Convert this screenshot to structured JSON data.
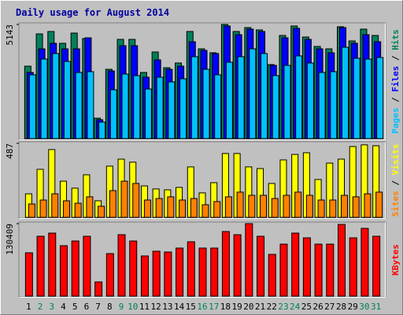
{
  "legend_separator": " / ",
  "chart_data": [
    {
      "type": "bar",
      "title": "Daily usage for August 2014",
      "ylim": [
        0,
        5143
      ],
      "yticks": [
        5143
      ],
      "series": [
        {
          "name": "Hits",
          "color": "#00805c",
          "values": [
            3263,
            4717,
            4824,
            4292,
            4753,
            4505,
            922,
            3121,
            4469,
            4469,
            2979,
            3902,
            3192,
            3405,
            4824,
            4043,
            3866,
            5143,
            4824,
            5001,
            4895,
            3334,
            4646,
            5072,
            4576,
            4150,
            4043,
            5037,
            4398,
            4930,
            4646
          ]
        },
        {
          "name": "Files",
          "color": "#0000ff",
          "values": [
            2979,
            4043,
            4292,
            4043,
            4043,
            4540,
            851,
            3050,
            4185,
            4185,
            2766,
            3547,
            3121,
            3263,
            4363,
            3972,
            3831,
            5072,
            4682,
            4930,
            4824,
            3298,
            4540,
            4966,
            4469,
            4043,
            3866,
            5001,
            4292,
            4682,
            4363
          ]
        },
        {
          "name": "Pages",
          "color": "#00c0ff",
          "values": [
            2873,
            3582,
            3831,
            3476,
            2979,
            3015,
            745,
            2199,
            2908,
            2837,
            2234,
            2766,
            2554,
            2695,
            3689,
            3121,
            2873,
            3440,
            3689,
            4043,
            3831,
            2837,
            3298,
            3724,
            3405,
            2979,
            3015,
            4114,
            3618,
            3582,
            3653
          ]
        }
      ]
    },
    {
      "type": "bar",
      "ylim": [
        0,
        487
      ],
      "yticks": [
        487
      ],
      "series": [
        {
          "name": "Visits",
          "color": "#ffff00",
          "values": [
            155,
            316,
            446,
            238,
            192,
            280,
            109,
            337,
            383,
            363,
            207,
            187,
            181,
            197,
            332,
            161,
            228,
            420,
            420,
            332,
            321,
            223,
            378,
            414,
            425,
            249,
            357,
            383,
            466,
            477,
            471
          ]
        },
        {
          "name": "Sites",
          "color": "#ff8000",
          "values": [
            88,
            114,
            155,
            109,
            93,
            135,
            73,
            176,
            238,
            223,
            114,
            124,
            135,
            114,
            124,
            83,
            104,
            135,
            166,
            145,
            145,
            124,
            145,
            166,
            145,
            114,
            114,
            145,
            135,
            155,
            166
          ]
        }
      ]
    },
    {
      "type": "bar",
      "ylim": [
        0,
        130409
      ],
      "yticks": [
        130409
      ],
      "categories": [
        "1",
        "2",
        "3",
        "4",
        "5",
        "6",
        "7",
        "8",
        "9",
        "10",
        "11",
        "12",
        "13",
        "14",
        "15",
        "16",
        "17",
        "18",
        "19",
        "20",
        "21",
        "22",
        "23",
        "24",
        "25",
        "26",
        "27",
        "28",
        "29",
        "30",
        "31"
      ],
      "category_colors": [
        "#000000",
        "#00805c",
        "#00805c",
        "#000000",
        "#000000",
        "#000000",
        "#000000",
        "#000000",
        "#00805c",
        "#00805c",
        "#000000",
        "#000000",
        "#000000",
        "#000000",
        "#000000",
        "#00805c",
        "#00805c",
        "#000000",
        "#000000",
        "#000000",
        "#000000",
        "#000000",
        "#00805c",
        "#00805c",
        "#000000",
        "#000000",
        "#000000",
        "#000000",
        "#000000",
        "#00805c",
        "#00805c"
      ],
      "series": [
        {
          "name": "KBytes",
          "color": "#ff0000",
          "values": [
            77962,
            107729,
            113399,
            90719,
            99224,
            107729,
            25515,
            76545,
            110564,
            99224,
            72292,
            80798,
            79380,
            86466,
            97806,
            86466,
            86466,
            116234,
            110564,
            130409,
            107729,
            75127,
            93554,
            113399,
            104894,
            93554,
            93554,
            128991,
            104894,
            121904,
            107729
          ]
        }
      ]
    }
  ]
}
